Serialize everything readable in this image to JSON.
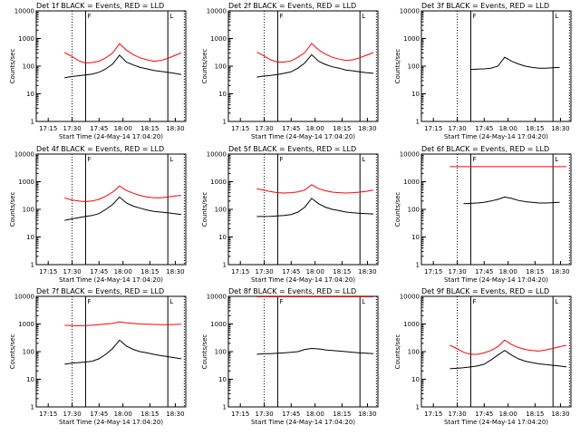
{
  "chart_data": [
    {
      "type": "line",
      "title": "Det 1f BLACK = Events, RED = LLD",
      "xlabel": "Start Time (24-May-14 17:04:20)",
      "ylabel": "Counts/sec",
      "yscale": "log",
      "ylim": [
        1,
        10000
      ],
      "yticks": [
        "1",
        "10",
        "100",
        "1000",
        "10000"
      ],
      "xticks": [
        "17:15",
        "17:30",
        "17:45",
        "18:00",
        "18:15",
        "18:30"
      ],
      "marker_labels": [
        "F",
        "L"
      ],
      "series": [
        {
          "name": "Events",
          "color": "#000000",
          "values": [
            38,
            42,
            45,
            48,
            52,
            60,
            80,
            120,
            250,
            140,
            110,
            90,
            80,
            70,
            65,
            60,
            55,
            50
          ]
        },
        {
          "name": "LLD",
          "color": "#ff0000",
          "values": [
            310,
            230,
            160,
            130,
            135,
            150,
            200,
            300,
            650,
            380,
            260,
            200,
            170,
            150,
            160,
            190,
            240,
            300
          ]
        }
      ]
    },
    {
      "type": "line",
      "title": "Det 2f BLACK = Events, RED = LLD",
      "xlabel": "Start Time (24-May-14 17:04:20)",
      "ylabel": "Counts/sec",
      "yscale": "log",
      "ylim": [
        1,
        10000
      ],
      "yticks": [
        "1",
        "10",
        "100",
        "1000",
        "10000"
      ],
      "xticks": [
        "17:15",
        "17:30",
        "17:45",
        "18:00",
        "18:15",
        "18:30"
      ],
      "marker_labels": [
        "F",
        "L"
      ],
      "series": [
        {
          "name": "Events",
          "color": "#000000",
          "values": [
            40,
            44,
            46,
            50,
            55,
            62,
            85,
            130,
            260,
            150,
            115,
            95,
            85,
            72,
            68,
            62,
            58,
            55
          ]
        },
        {
          "name": "LLD",
          "color": "#ff0000",
          "values": [
            320,
            240,
            170,
            140,
            140,
            155,
            210,
            310,
            660,
            390,
            270,
            210,
            180,
            160,
            170,
            200,
            250,
            310
          ]
        }
      ]
    },
    {
      "type": "line",
      "title": "Det 3f BLACK = Events, RED = LLD",
      "xlabel": "Start Time (24-May-14 17:04:20)",
      "ylabel": "Counts/sec",
      "yscale": "log",
      "ylim": [
        1,
        10000
      ],
      "yticks": [
        "1",
        "10",
        "100",
        "1000",
        "10000"
      ],
      "xticks": [
        "17:15",
        "17:30",
        "17:45",
        "18:00",
        "18:15",
        "18:30"
      ],
      "marker_labels": [
        "F",
        "L"
      ],
      "series": [
        {
          "name": "Events",
          "color": "#000000",
          "values": [
            null,
            null,
            null,
            75,
            78,
            80,
            85,
            100,
            210,
            150,
            120,
            100,
            90,
            85,
            85,
            88,
            90,
            null
          ]
        }
      ]
    },
    {
      "type": "line",
      "title": "Det 4f BLACK = Events, RED = LLD",
      "xlabel": "Start Time (24-May-14 17:04:20)",
      "ylabel": "Counts/sec",
      "yscale": "log",
      "ylim": [
        1,
        10000
      ],
      "yticks": [
        "1",
        "10",
        "100",
        "1000",
        "10000"
      ],
      "xticks": [
        "17:15",
        "17:30",
        "17:45",
        "18:00",
        "18:15",
        "18:30"
      ],
      "marker_labels": [
        "F",
        "L"
      ],
      "series": [
        {
          "name": "Events",
          "color": "#000000",
          "values": [
            40,
            45,
            50,
            55,
            60,
            70,
            100,
            150,
            280,
            170,
            130,
            110,
            95,
            85,
            80,
            75,
            70,
            65
          ]
        },
        {
          "name": "LLD",
          "color": "#ff0000",
          "values": [
            260,
            220,
            200,
            190,
            200,
            230,
            300,
            420,
            700,
            480,
            380,
            320,
            280,
            260,
            260,
            280,
            300,
            320
          ]
        }
      ]
    },
    {
      "type": "line",
      "title": "Det 5f BLACK = Events, RED = LLD",
      "xlabel": "Start Time (24-May-14 17:04:20)",
      "ylabel": "Counts/sec",
      "yscale": "log",
      "ylim": [
        1,
        10000
      ],
      "yticks": [
        "1",
        "10",
        "100",
        "1000",
        "10000"
      ],
      "xticks": [
        "17:15",
        "17:30",
        "17:45",
        "18:00",
        "18:15",
        "18:30"
      ],
      "marker_labels": [
        "F",
        "L"
      ],
      "series": [
        {
          "name": "Events",
          "color": "#000000",
          "values": [
            55,
            55,
            56,
            58,
            60,
            65,
            80,
            120,
            250,
            160,
            120,
            100,
            90,
            80,
            75,
            72,
            70,
            68
          ]
        },
        {
          "name": "LLD",
          "color": "#ff0000",
          "values": [
            560,
            500,
            440,
            400,
            390,
            400,
            430,
            500,
            780,
            560,
            470,
            420,
            400,
            390,
            400,
            420,
            450,
            500
          ]
        }
      ]
    },
    {
      "type": "line",
      "title": "Det 6f BLACK = Events, RED = LLD",
      "xlabel": "Start Time (24-May-14 17:04:20)",
      "ylabel": "Counts/sec",
      "yscale": "log",
      "ylim": [
        1,
        10000
      ],
      "yticks": [
        "1",
        "10",
        "100",
        "1000",
        "10000"
      ],
      "xticks": [
        "17:15",
        "17:30",
        "17:45",
        "18:00",
        "18:15",
        "18:30"
      ],
      "marker_labels": [
        "F",
        "L"
      ],
      "series": [
        {
          "name": "Events",
          "color": "#000000",
          "values": [
            null,
            null,
            160,
            165,
            170,
            180,
            200,
            230,
            280,
            250,
            210,
            190,
            180,
            170,
            170,
            175,
            180,
            null
          ]
        },
        {
          "name": "LLD",
          "color": "#ff0000",
          "values": [
            3500,
            3500,
            3500,
            3500,
            3500,
            3500,
            3500,
            3500,
            3500,
            3500,
            3500,
            3500,
            3500,
            3500,
            3500,
            3500,
            3500,
            3500
          ]
        }
      ]
    },
    {
      "type": "line",
      "title": "Det 7f BLACK = Events, RED = LLD",
      "xlabel": "Start Time (24-May-14 17:04:20)",
      "ylabel": "Counts/sec",
      "yscale": "log",
      "ylim": [
        1,
        10000
      ],
      "yticks": [
        "1",
        "10",
        "100",
        "1000",
        "10000"
      ],
      "xticks": [
        "17:15",
        "17:30",
        "17:45",
        "18:00",
        "18:15",
        "18:30"
      ],
      "marker_labels": [
        "F",
        "L"
      ],
      "series": [
        {
          "name": "Events",
          "color": "#000000",
          "values": [
            35,
            38,
            40,
            42,
            45,
            55,
            80,
            130,
            260,
            160,
            120,
            100,
            90,
            80,
            72,
            66,
            60,
            55
          ]
        },
        {
          "name": "LLD",
          "color": "#ff0000",
          "values": [
            900,
            880,
            860,
            870,
            900,
            950,
            1000,
            1050,
            1200,
            1100,
            1050,
            1000,
            980,
            960,
            950,
            950,
            960,
            970
          ]
        }
      ]
    },
    {
      "type": "line",
      "title": "Det 8f BLACK = Events, RED = LLD",
      "xlabel": "Start Time (24-May-14 17:04:20)",
      "ylabel": "Counts/sec",
      "yscale": "log",
      "ylim": [
        1,
        10000
      ],
      "yticks": [
        "1",
        "10",
        "100",
        "1000",
        "10000"
      ],
      "xticks": [
        "17:15",
        "17:30",
        "17:45",
        "18:00",
        "18:15",
        "18:30"
      ],
      "marker_labels": [
        "F",
        "L"
      ],
      "series": [
        {
          "name": "Events",
          "color": "#000000",
          "values": [
            80,
            85,
            85,
            88,
            90,
            95,
            100,
            120,
            130,
            125,
            115,
            110,
            105,
            100,
            95,
            90,
            88,
            85
          ]
        },
        {
          "name": "LLD",
          "color": "#ff0000",
          "values": [
            12000,
            12000,
            12000,
            12000,
            12000,
            12000,
            12000,
            12000,
            12000,
            12000,
            12000,
            12000,
            12000,
            12000,
            12000,
            12000,
            12000,
            12000
          ]
        }
      ]
    },
    {
      "type": "line",
      "title": "Det 9f BLACK = Events, RED = LLD",
      "xlabel": "Start Time (24-May-14 17:04:20)",
      "ylabel": "Counts/sec",
      "yscale": "log",
      "ylim": [
        1,
        10000
      ],
      "yticks": [
        "1",
        "10",
        "100",
        "1000",
        "10000"
      ],
      "xticks": [
        "17:15",
        "17:30",
        "17:45",
        "18:00",
        "18:15",
        "18:30"
      ],
      "marker_labels": [
        "F",
        "L"
      ],
      "series": [
        {
          "name": "Events",
          "color": "#000000",
          "values": [
            24,
            25,
            26,
            28,
            30,
            35,
            50,
            75,
            110,
            75,
            55,
            45,
            40,
            36,
            34,
            32,
            30,
            28
          ]
        },
        {
          "name": "LLD",
          "color": "#ff0000",
          "values": [
            170,
            130,
            95,
            80,
            80,
            90,
            110,
            150,
            260,
            180,
            140,
            120,
            110,
            105,
            115,
            130,
            150,
            170
          ]
        }
      ]
    }
  ]
}
